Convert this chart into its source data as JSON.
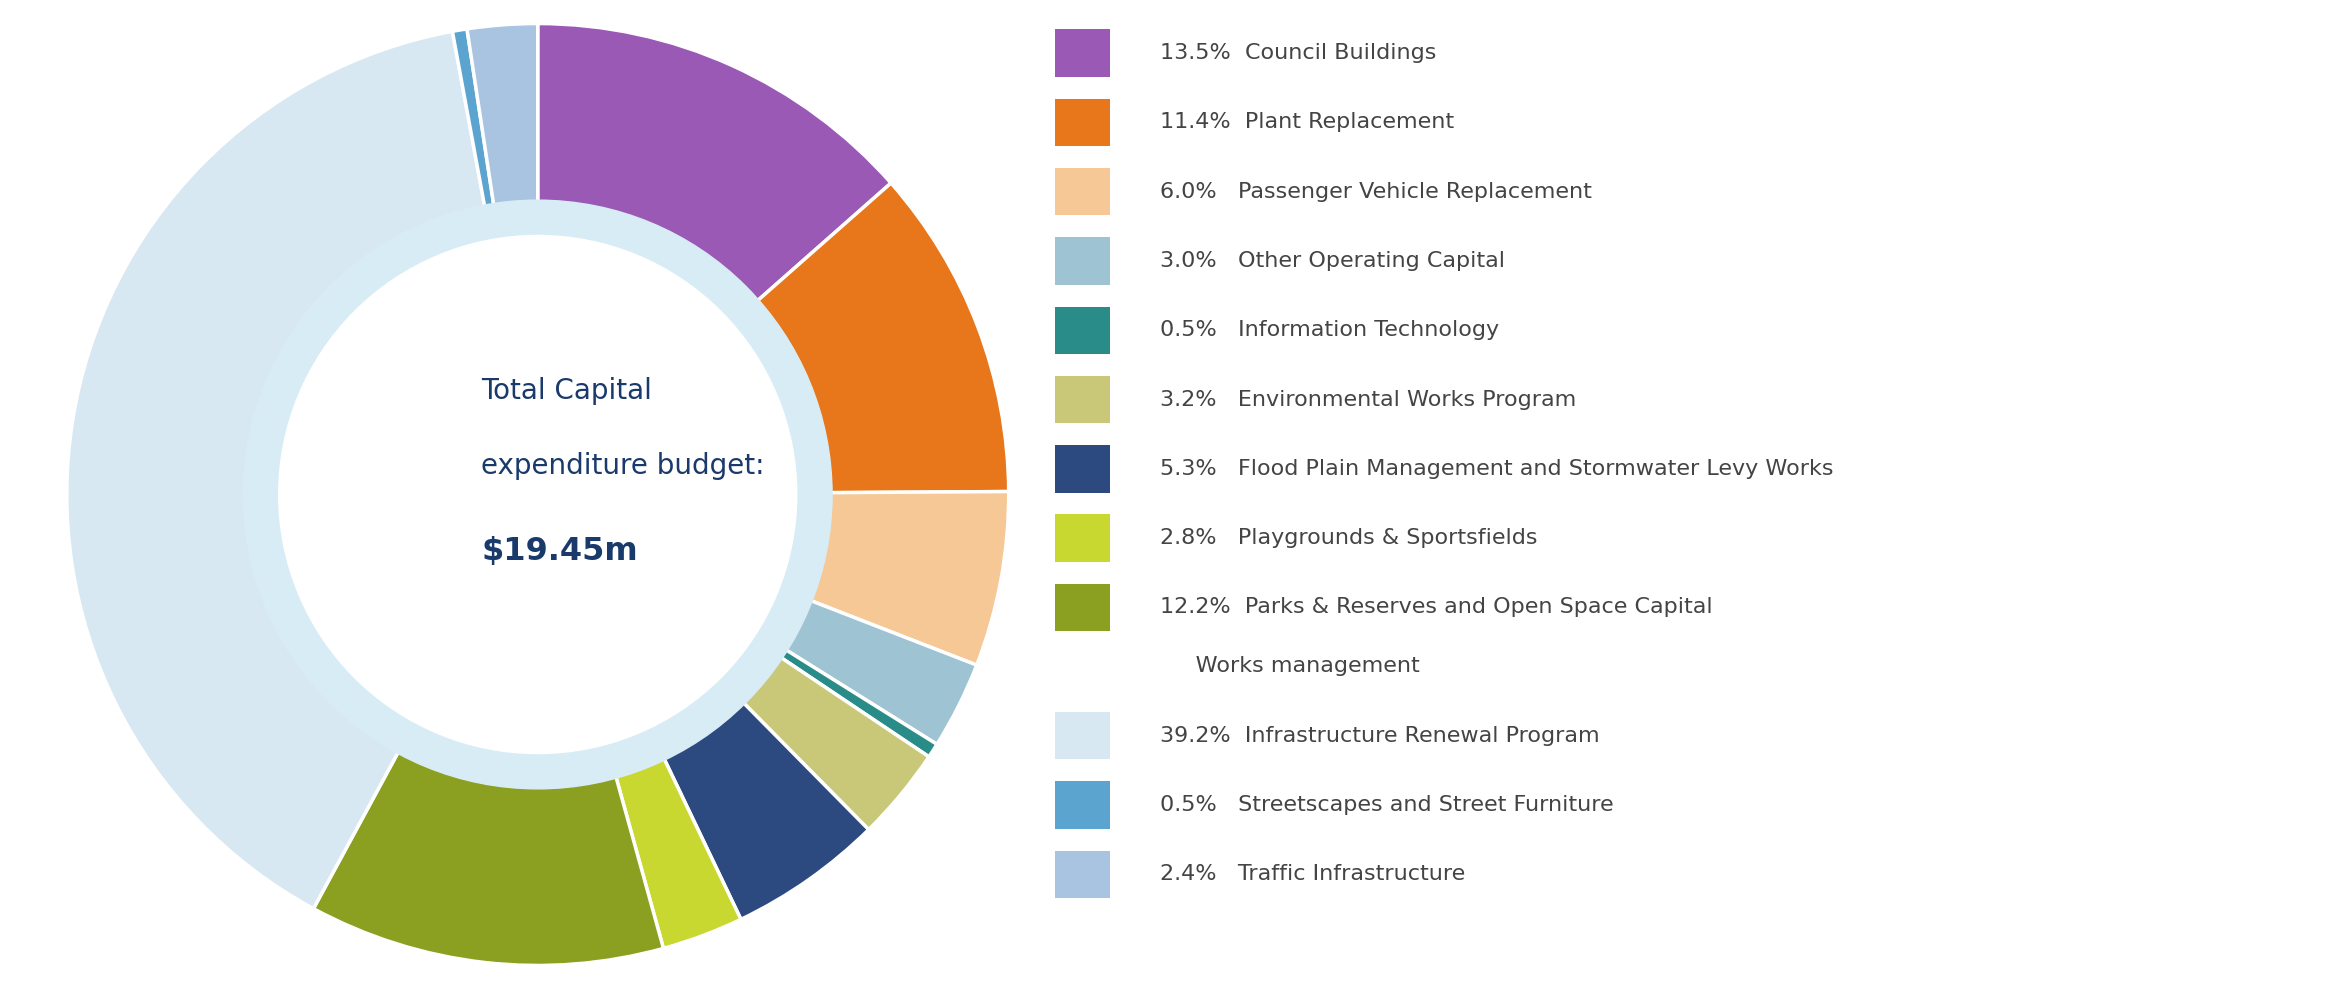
{
  "slices": [
    {
      "label": "13.5%  Council Buildings",
      "pct": 13.5,
      "color": "#9B59B6"
    },
    {
      "label": "11.4%  Plant Replacement",
      "pct": 11.4,
      "color": "#E8761A"
    },
    {
      "label": "6.0%   Passenger Vehicle Replacement",
      "pct": 6.0,
      "color": "#F5C896"
    },
    {
      "label": "3.0%   Other Operating Capital",
      "pct": 3.0,
      "color": "#9EC4D4"
    },
    {
      "label": "0.5%   Information Technology",
      "pct": 0.5,
      "color": "#2A8C88"
    },
    {
      "label": "3.2%   Environmental Works Program",
      "pct": 3.2,
      "color": "#C8C878"
    },
    {
      "label": "5.3%   Flood Plain Management and Stormwater Levy Works",
      "pct": 5.3,
      "color": "#2C4A80"
    },
    {
      "label": "2.8%   Playgrounds & Sportsfields",
      "pct": 2.8,
      "color": "#C8D830"
    },
    {
      "label": "12.2%  Parks & Reserves and Open Space Capital",
      "pct": 12.2,
      "color": "#8BA020"
    },
    {
      "label": "39.2%  Infrastructure Renewal Program",
      "pct": 39.2,
      "color": "#D8E8F2"
    },
    {
      "label": "0.5%   Streetscapes and Street Furniture",
      "pct": 0.5,
      "color": "#5BA4D0"
    },
    {
      "label": "2.4%   Traffic Infrastructure",
      "pct": 2.4,
      "color": "#A8C4E0"
    }
  ],
  "legend_extra_line": "     Works management",
  "center_text_line1": "Total Capital",
  "center_text_line2": "expenditure budget:",
  "center_text_line3": "$19.45m",
  "center_color": "#1A3A6B",
  "background_color": "#FFFFFF",
  "inner_bg_color": "#D8ECF5",
  "donut_width": 0.38,
  "start_angle": 90,
  "figsize": [
    23.38,
    9.89
  ],
  "dpi": 100
}
